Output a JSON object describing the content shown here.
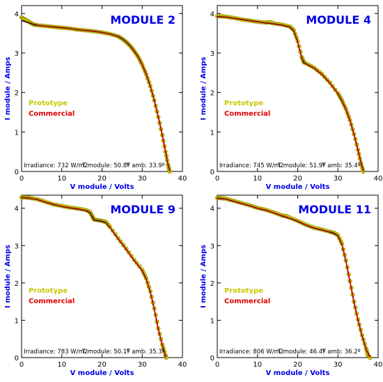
{
  "figure": {
    "background": "#ffffff"
  },
  "colors": {
    "axis_label": "#0000e6",
    "module_title": "#0000e6",
    "prototype": "#c8c800",
    "commercial": "#e00000",
    "prototype_marker_edge": "#8a8a00"
  },
  "chart_data": [
    {
      "type": "scatter",
      "title": "MODULE 2",
      "xlabel": "V module / Volts",
      "ylabel": "I module / Amps",
      "xlim": [
        0,
        40
      ],
      "ylim": [
        0,
        4.2
      ],
      "xticks": [
        0,
        10,
        20,
        30,
        40
      ],
      "yticks": [
        0,
        1,
        2,
        3,
        4
      ],
      "legend_position": "left-middle",
      "annotation": {
        "irradiance": "Irradiance: 732 W/m2",
        "t_module": "T module: 50.8º",
        "t_amb": "T amb: 33.9º"
      },
      "series": [
        {
          "name": "Prototype",
          "style": "markers",
          "points": [
            [
              0,
              3.9
            ],
            [
              0.6,
              3.86
            ],
            [
              1.2,
              3.83
            ],
            [
              2,
              3.78
            ],
            [
              3,
              3.72
            ],
            [
              4,
              3.7
            ],
            [
              6,
              3.68
            ],
            [
              8,
              3.66
            ],
            [
              10,
              3.64
            ],
            [
              12,
              3.62
            ],
            [
              14,
              3.59
            ],
            [
              16,
              3.57
            ],
            [
              18,
              3.55
            ],
            [
              20,
              3.52
            ],
            [
              22,
              3.48
            ],
            [
              24,
              3.42
            ],
            [
              25,
              3.36
            ],
            [
              26,
              3.28
            ],
            [
              27,
              3.18
            ],
            [
              28,
              3.05
            ],
            [
              29,
              2.9
            ],
            [
              30,
              2.7
            ],
            [
              31,
              2.46
            ],
            [
              32,
              2.16
            ],
            [
              33,
              1.8
            ],
            [
              34,
              1.38
            ],
            [
              35,
              0.92
            ],
            [
              35.8,
              0.5
            ],
            [
              36.4,
              0.18
            ],
            [
              36.8,
              0
            ]
          ]
        },
        {
          "name": "Commercial",
          "style": "line",
          "points": [
            [
              0,
              3.82
            ],
            [
              1,
              3.79
            ],
            [
              2,
              3.76
            ],
            [
              3,
              3.72
            ],
            [
              4,
              3.7
            ],
            [
              6,
              3.68
            ],
            [
              8,
              3.66
            ],
            [
              10,
              3.64
            ],
            [
              12,
              3.62
            ],
            [
              14,
              3.59
            ],
            [
              16,
              3.57
            ],
            [
              18,
              3.55
            ],
            [
              20,
              3.52
            ],
            [
              22,
              3.48
            ],
            [
              24,
              3.42
            ],
            [
              25,
              3.36
            ],
            [
              26,
              3.28
            ],
            [
              27,
              3.18
            ],
            [
              28,
              3.05
            ],
            [
              29,
              2.9
            ],
            [
              30,
              2.7
            ],
            [
              31,
              2.46
            ],
            [
              32,
              2.16
            ],
            [
              33,
              1.8
            ],
            [
              34,
              1.38
            ],
            [
              35,
              0.92
            ],
            [
              35.8,
              0.5
            ],
            [
              36.4,
              0.18
            ],
            [
              36.9,
              0
            ]
          ]
        }
      ]
    },
    {
      "type": "scatter",
      "title": "MODULE 4",
      "xlabel": "V module / Volts",
      "ylabel": "I module / Amps",
      "xlim": [
        0,
        40
      ],
      "ylim": [
        0,
        4.2
      ],
      "xticks": [
        0,
        10,
        20,
        30,
        40
      ],
      "yticks": [
        0,
        1,
        2,
        3,
        4
      ],
      "legend_position": "left-middle",
      "annotation": {
        "irradiance": "Irradiance: 745 W/m2",
        "t_module": "T module: 51.9º",
        "t_amb": "T amb: 35.4º"
      },
      "series": [
        {
          "name": "Prototype",
          "style": "markers",
          "points": [
            [
              0,
              3.93
            ],
            [
              1,
              3.93
            ],
            [
              2,
              3.92
            ],
            [
              4,
              3.89
            ],
            [
              6,
              3.85
            ],
            [
              8,
              3.82
            ],
            [
              10,
              3.79
            ],
            [
              12,
              3.77
            ],
            [
              13,
              3.78
            ],
            [
              14,
              3.75
            ],
            [
              16,
              3.72
            ],
            [
              18,
              3.67
            ],
            [
              19,
              3.58
            ],
            [
              20,
              3.3
            ],
            [
              21,
              2.9
            ],
            [
              21.5,
              2.77
            ],
            [
              22,
              2.74
            ],
            [
              24,
              2.63
            ],
            [
              26,
              2.47
            ],
            [
              28,
              2.25
            ],
            [
              30,
              1.98
            ],
            [
              31,
              1.8
            ],
            [
              32,
              1.58
            ],
            [
              33,
              1.3
            ],
            [
              34,
              0.95
            ],
            [
              35,
              0.55
            ],
            [
              35.7,
              0.22
            ],
            [
              36.3,
              0
            ]
          ]
        },
        {
          "name": "Commercial",
          "style": "line",
          "points": [
            [
              0,
              3.92
            ],
            [
              2,
              3.91
            ],
            [
              4,
              3.88
            ],
            [
              6,
              3.85
            ],
            [
              8,
              3.82
            ],
            [
              10,
              3.79
            ],
            [
              12,
              3.76
            ],
            [
              14,
              3.74
            ],
            [
              16,
              3.71
            ],
            [
              18,
              3.66
            ],
            [
              19,
              3.57
            ],
            [
              20,
              3.28
            ],
            [
              21,
              2.88
            ],
            [
              21.5,
              2.76
            ],
            [
              22,
              2.73
            ],
            [
              24,
              2.62
            ],
            [
              26,
              2.46
            ],
            [
              28,
              2.24
            ],
            [
              30,
              1.97
            ],
            [
              31,
              1.79
            ],
            [
              32,
              1.57
            ],
            [
              33,
              1.29
            ],
            [
              34,
              0.94
            ],
            [
              35,
              0.54
            ],
            [
              35.8,
              0.2
            ],
            [
              36.4,
              0
            ]
          ]
        }
      ]
    },
    {
      "type": "scatter",
      "title": "MODULE 9",
      "xlabel": "V module / Volts",
      "ylabel": "I module / Amps",
      "xlim": [
        0,
        40
      ],
      "ylim": [
        0,
        4.35
      ],
      "xticks": [
        0,
        10,
        20,
        30,
        40
      ],
      "yticks": [
        0,
        1,
        2,
        3,
        4
      ],
      "legend_position": "left-middle",
      "annotation": {
        "irradiance": "Irradiance: 783 W/m2",
        "t_module": "T module: 50.1º",
        "t_amb": "T amb: 35.3º"
      },
      "series": [
        {
          "name": "Prototype",
          "style": "markers",
          "points": [
            [
              0,
              4.29
            ],
            [
              1,
              4.29
            ],
            [
              2,
              4.28
            ],
            [
              4,
              4.24
            ],
            [
              6,
              4.17
            ],
            [
              8,
              4.1
            ],
            [
              10,
              4.06
            ],
            [
              12,
              4.02
            ],
            [
              14,
              3.99
            ],
            [
              16,
              3.95
            ],
            [
              17,
              3.9
            ],
            [
              17.6,
              3.78
            ],
            [
              18,
              3.7
            ],
            [
              19,
              3.68
            ],
            [
              20,
              3.66
            ],
            [
              21,
              3.63
            ],
            [
              22,
              3.5
            ],
            [
              24,
              3.2
            ],
            [
              26,
              2.92
            ],
            [
              28,
              2.62
            ],
            [
              30,
              2.35
            ],
            [
              31,
              2.12
            ],
            [
              32,
              1.78
            ],
            [
              33,
              1.32
            ],
            [
              34,
              0.78
            ],
            [
              35,
              0.35
            ],
            [
              35.8,
              0.05
            ],
            [
              36,
              0
            ]
          ]
        },
        {
          "name": "Commercial",
          "style": "line",
          "points": [
            [
              0,
              4.29
            ],
            [
              2,
              4.27
            ],
            [
              4,
              4.23
            ],
            [
              6,
              4.16
            ],
            [
              8,
              4.1
            ],
            [
              10,
              4.05
            ],
            [
              12,
              4.01
            ],
            [
              14,
              3.98
            ],
            [
              16,
              3.94
            ],
            [
              17,
              3.88
            ],
            [
              17.6,
              3.77
            ],
            [
              18,
              3.69
            ],
            [
              19,
              3.67
            ],
            [
              20,
              3.65
            ],
            [
              21,
              3.61
            ],
            [
              22,
              3.48
            ],
            [
              24,
              3.18
            ],
            [
              26,
              2.9
            ],
            [
              28,
              2.6
            ],
            [
              30,
              2.33
            ],
            [
              31,
              2.1
            ],
            [
              32,
              1.76
            ],
            [
              33,
              1.3
            ],
            [
              34,
              0.76
            ],
            [
              35,
              0.33
            ],
            [
              35.9,
              0
            ]
          ]
        }
      ]
    },
    {
      "type": "scatter",
      "title": "MODULE 11",
      "xlabel": "V module / Volts",
      "ylabel": "I module / Amps",
      "xlim": [
        0,
        40
      ],
      "ylim": [
        0,
        4.35
      ],
      "xticks": [
        0,
        10,
        20,
        30,
        40
      ],
      "yticks": [
        0,
        1,
        2,
        3,
        4
      ],
      "legend_position": "left-middle",
      "annotation": {
        "irradiance": "Irradiance: 806 W/m2",
        "t_module": "T module: 46.4º",
        "t_amb": "T amb: 36.2º"
      },
      "series": [
        {
          "name": "Prototype",
          "style": "markers",
          "points": [
            [
              0,
              4.28
            ],
            [
              1,
              4.27
            ],
            [
              2,
              4.26
            ],
            [
              4,
              4.2
            ],
            [
              6,
              4.14
            ],
            [
              8,
              4.08
            ],
            [
              10,
              4.01
            ],
            [
              12,
              3.96
            ],
            [
              14,
              3.89
            ],
            [
              16,
              3.81
            ],
            [
              17,
              3.79
            ],
            [
              18,
              3.75
            ],
            [
              20,
              3.66
            ],
            [
              22,
              3.56
            ],
            [
              24,
              3.48
            ],
            [
              26,
              3.43
            ],
            [
              28,
              3.37
            ],
            [
              29,
              3.34
            ],
            [
              30,
              3.28
            ],
            [
              31,
              3.05
            ],
            [
              32,
              2.6
            ],
            [
              33,
              2.05
            ],
            [
              34,
              1.5
            ],
            [
              35,
              1.02
            ],
            [
              36,
              0.6
            ],
            [
              37,
              0.25
            ],
            [
              37.5,
              0.05
            ],
            [
              38,
              0
            ]
          ]
        },
        {
          "name": "Commercial",
          "style": "line",
          "points": [
            [
              0,
              4.27
            ],
            [
              2,
              4.25
            ],
            [
              4,
              4.19
            ],
            [
              6,
              4.13
            ],
            [
              8,
              4.07
            ],
            [
              10,
              4.0
            ],
            [
              12,
              3.95
            ],
            [
              14,
              3.88
            ],
            [
              16,
              3.8
            ],
            [
              18,
              3.73
            ],
            [
              20,
              3.65
            ],
            [
              22,
              3.55
            ],
            [
              24,
              3.47
            ],
            [
              26,
              3.42
            ],
            [
              28,
              3.36
            ],
            [
              29,
              3.33
            ],
            [
              30,
              3.26
            ],
            [
              31,
              3.03
            ],
            [
              32,
              2.58
            ],
            [
              33,
              2.03
            ],
            [
              34,
              1.48
            ],
            [
              35,
              1.0
            ],
            [
              36,
              0.58
            ],
            [
              37,
              0.23
            ],
            [
              38,
              0
            ]
          ]
        }
      ]
    }
  ]
}
